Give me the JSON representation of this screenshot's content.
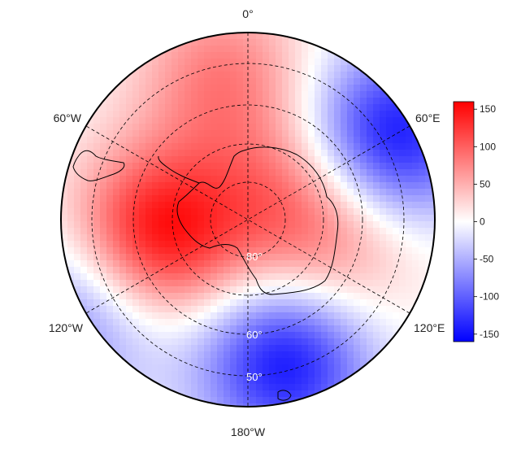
{
  "map": {
    "projection": "south-polar-stereographic",
    "meridian_labels": [
      {
        "id": "lon-0",
        "text": "0°"
      },
      {
        "id": "lon-60e",
        "text": "60°E"
      },
      {
        "id": "lon-120e",
        "text": "120°E"
      },
      {
        "id": "lon-180w",
        "text": "180°W"
      },
      {
        "id": "lon-120w",
        "text": "120°W"
      },
      {
        "id": "lon-60w",
        "text": "60°W"
      }
    ],
    "latitude_labels": [
      {
        "id": "lat-80",
        "text": "80°"
      },
      {
        "id": "lat-60",
        "text": "60°"
      },
      {
        "id": "lat-50",
        "text": "50°"
      }
    ],
    "gridlines": "dashed",
    "field_anomalies": [
      {
        "name": "positive-center-amundsen",
        "lon": -100,
        "lat": -68,
        "value": 155
      },
      {
        "name": "positive-polar-cap",
        "lon": 60,
        "lat": -80,
        "value": 70
      },
      {
        "name": "positive-atlantic",
        "lon": -10,
        "lat": -55,
        "value": 80
      },
      {
        "name": "negative-indian",
        "lon": 60,
        "lat": -50,
        "value": -150
      },
      {
        "name": "negative-pacific",
        "lon": 165,
        "lat": -55,
        "value": -150
      },
      {
        "name": "negative-southeast-pacific",
        "lon": -120,
        "lat": -45,
        "value": -80
      },
      {
        "name": "positive-east-antarctic",
        "lon": 110,
        "lat": -67,
        "value": 60
      }
    ]
  },
  "colorbar": {
    "ticks": [
      "150",
      "100",
      "50",
      "0",
      "-50",
      "-100",
      "-150"
    ],
    "min": -160,
    "max": 160,
    "colors": {
      "low": "#0000ff",
      "mid": "#ffffff",
      "high": "#ff0000"
    }
  }
}
